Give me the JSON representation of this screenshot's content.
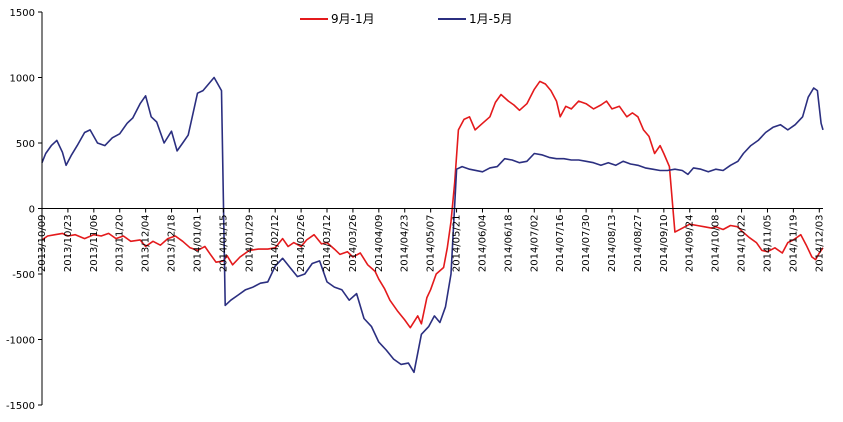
{
  "chart_data": {
    "type": "line",
    "ylim": [
      -1500,
      1500
    ],
    "y_ticks": [
      1500,
      1000,
      500,
      0,
      -500,
      -1000,
      -1500
    ],
    "grid": false,
    "legend_position": "top-center",
    "x_tick_labels": [
      "2013/10/09",
      "2013/10/23",
      "2013/11/06",
      "2013/11/20",
      "2013/12/04",
      "2013/12/18",
      "2014/01/01",
      "2014/01/15",
      "2014/01/29",
      "2014/02/12",
      "2014/02/26",
      "2014/03/12",
      "2014/03/26",
      "2014/04/09",
      "2014/04/23",
      "2014/05/07",
      "2014/05/21",
      "2014/06/04",
      "2014/06/18",
      "2014/07/02",
      "2014/07/16",
      "2014/07/30",
      "2014/08/13",
      "2014/08/27",
      "2014/09/10",
      "2014/09/24",
      "2014/10/08",
      "2014/10/22",
      "2014/11/05",
      "2014/11/19",
      "2014/12/03"
    ],
    "x_range": [
      "2013/10/09",
      "2014/12/05"
    ],
    "series": [
      {
        "name": "9月-1月",
        "color": "#e41a1c",
        "points": [
          [
            "2013/10/09",
            -240
          ],
          [
            "2013/10/12",
            -210
          ],
          [
            "2013/10/16",
            -200
          ],
          [
            "2013/10/20",
            -190
          ],
          [
            "2013/10/23",
            -210
          ],
          [
            "2013/10/27",
            -200
          ],
          [
            "2013/11/01",
            -230
          ],
          [
            "2013/11/06",
            -200
          ],
          [
            "2013/11/10",
            -210
          ],
          [
            "2013/11/14",
            -190
          ],
          [
            "2013/11/18",
            -230
          ],
          [
            "2013/11/22",
            -210
          ],
          [
            "2013/11/26",
            -250
          ],
          [
            "2013/12/01",
            -240
          ],
          [
            "2013/12/04",
            -290
          ],
          [
            "2013/12/08",
            -250
          ],
          [
            "2013/12/12",
            -280
          ],
          [
            "2013/12/16",
            -230
          ],
          [
            "2013/12/20",
            -210
          ],
          [
            "2013/12/24",
            -250
          ],
          [
            "2013/12/28",
            -300
          ],
          [
            "2014/01/01",
            -320
          ],
          [
            "2014/01/05",
            -290
          ],
          [
            "2014/01/08",
            -350
          ],
          [
            "2014/01/11",
            -410
          ],
          [
            "2014/01/15",
            -400
          ],
          [
            "2014/01/17",
            -360
          ],
          [
            "2014/01/20",
            -430
          ],
          [
            "2014/01/24",
            -370
          ],
          [
            "2014/01/29",
            -320
          ],
          [
            "2014/02/03",
            -310
          ],
          [
            "2014/02/08",
            -310
          ],
          [
            "2014/02/12",
            -300
          ],
          [
            "2014/02/16",
            -230
          ],
          [
            "2014/02/19",
            -290
          ],
          [
            "2014/02/22",
            -260
          ],
          [
            "2014/02/26",
            -290
          ],
          [
            "2014/03/01",
            -240
          ],
          [
            "2014/03/05",
            -200
          ],
          [
            "2014/03/09",
            -270
          ],
          [
            "2014/03/12",
            -260
          ],
          [
            "2014/03/16",
            -310
          ],
          [
            "2014/03/19",
            -350
          ],
          [
            "2014/03/23",
            -330
          ],
          [
            "2014/03/26",
            -370
          ],
          [
            "2014/03/30",
            -340
          ],
          [
            "2014/04/03",
            -430
          ],
          [
            "2014/04/07",
            -480
          ],
          [
            "2014/04/09",
            -540
          ],
          [
            "2014/04/12",
            -610
          ],
          [
            "2014/04/15",
            -700
          ],
          [
            "2014/04/19",
            -780
          ],
          [
            "2014/04/23",
            -850
          ],
          [
            "2014/04/26",
            -910
          ],
          [
            "2014/04/30",
            -820
          ],
          [
            "2014/05/02",
            -880
          ],
          [
            "2014/05/05",
            -680
          ],
          [
            "2014/05/07",
            -620
          ],
          [
            "2014/05/10",
            -500
          ],
          [
            "2014/05/14",
            -450
          ],
          [
            "2014/05/16",
            -300
          ],
          [
            "2014/05/18",
            -100
          ],
          [
            "2014/05/20",
            200
          ],
          [
            "2014/05/22",
            600
          ],
          [
            "2014/05/25",
            680
          ],
          [
            "2014/05/28",
            700
          ],
          [
            "2014/05/31",
            600
          ],
          [
            "2014/06/04",
            650
          ],
          [
            "2014/06/08",
            700
          ],
          [
            "2014/06/11",
            810
          ],
          [
            "2014/06/14",
            870
          ],
          [
            "2014/06/18",
            820
          ],
          [
            "2014/06/21",
            790
          ],
          [
            "2014/06/24",
            750
          ],
          [
            "2014/06/28",
            800
          ],
          [
            "2014/07/02",
            910
          ],
          [
            "2014/07/05",
            970
          ],
          [
            "2014/07/08",
            950
          ],
          [
            "2014/07/11",
            900
          ],
          [
            "2014/07/14",
            820
          ],
          [
            "2014/07/16",
            700
          ],
          [
            "2014/07/19",
            780
          ],
          [
            "2014/07/22",
            760
          ],
          [
            "2014/07/26",
            820
          ],
          [
            "2014/07/30",
            800
          ],
          [
            "2014/08/03",
            760
          ],
          [
            "2014/08/07",
            790
          ],
          [
            "2014/08/10",
            820
          ],
          [
            "2014/08/13",
            760
          ],
          [
            "2014/08/17",
            780
          ],
          [
            "2014/08/21",
            700
          ],
          [
            "2014/08/24",
            730
          ],
          [
            "2014/08/27",
            700
          ],
          [
            "2014/08/30",
            600
          ],
          [
            "2014/09/02",
            550
          ],
          [
            "2014/09/05",
            420
          ],
          [
            "2014/09/08",
            480
          ],
          [
            "2014/09/10",
            420
          ],
          [
            "2014/09/13",
            320
          ],
          [
            "2014/09/16",
            -180
          ],
          [
            "2014/09/20",
            -150
          ],
          [
            "2014/09/24",
            -120
          ],
          [
            "2014/09/28",
            -130
          ],
          [
            "2014/10/02",
            -140
          ],
          [
            "2014/10/06",
            -150
          ],
          [
            "2014/10/08",
            -140
          ],
          [
            "2014/10/12",
            -160
          ],
          [
            "2014/10/16",
            -130
          ],
          [
            "2014/10/20",
            -140
          ],
          [
            "2014/10/22",
            -170
          ],
          [
            "2014/10/26",
            -220
          ],
          [
            "2014/10/30",
            -260
          ],
          [
            "2014/11/02",
            -320
          ],
          [
            "2014/11/05",
            -330
          ],
          [
            "2014/11/09",
            -300
          ],
          [
            "2014/11/13",
            -340
          ],
          [
            "2014/11/16",
            -260
          ],
          [
            "2014/11/19",
            -240
          ],
          [
            "2014/11/23",
            -200
          ],
          [
            "2014/11/26",
            -280
          ],
          [
            "2014/11/29",
            -370
          ],
          [
            "2014/12/01",
            -390
          ],
          [
            "2014/12/03",
            -340
          ],
          [
            "2014/12/05",
            -300
          ]
        ]
      },
      {
        "name": "1月-5月",
        "color": "#2b2f80",
        "points": [
          [
            "2013/10/09",
            350
          ],
          [
            "2013/10/11",
            420
          ],
          [
            "2013/10/14",
            480
          ],
          [
            "2013/10/17",
            520
          ],
          [
            "2013/10/20",
            430
          ],
          [
            "2013/10/22",
            330
          ],
          [
            "2013/10/25",
            410
          ],
          [
            "2013/10/28",
            480
          ],
          [
            "2013/11/01",
            580
          ],
          [
            "2013/11/04",
            600
          ],
          [
            "2013/11/08",
            500
          ],
          [
            "2013/11/12",
            480
          ],
          [
            "2013/11/16",
            540
          ],
          [
            "2013/11/20",
            570
          ],
          [
            "2013/11/24",
            650
          ],
          [
            "2013/11/27",
            690
          ],
          [
            "2013/12/01",
            800
          ],
          [
            "2013/12/04",
            860
          ],
          [
            "2013/12/07",
            700
          ],
          [
            "2013/12/10",
            660
          ],
          [
            "2013/12/14",
            500
          ],
          [
            "2013/12/18",
            590
          ],
          [
            "2013/12/21",
            440
          ],
          [
            "2013/12/24",
            500
          ],
          [
            "2013/12/27",
            560
          ],
          [
            "2014/01/01",
            880
          ],
          [
            "2014/01/04",
            900
          ],
          [
            "2014/01/07",
            950
          ],
          [
            "2014/01/10",
            1000
          ],
          [
            "2014/01/12",
            950
          ],
          [
            "2014/01/14",
            900
          ],
          [
            "2014/01/15",
            60
          ],
          [
            "2014/01/16",
            -740
          ],
          [
            "2014/01/19",
            -700
          ],
          [
            "2014/01/23",
            -660
          ],
          [
            "2014/01/27",
            -620
          ],
          [
            "2014/01/31",
            -600
          ],
          [
            "2014/02/04",
            -570
          ],
          [
            "2014/02/08",
            -560
          ],
          [
            "2014/02/12",
            -440
          ],
          [
            "2014/02/16",
            -380
          ],
          [
            "2014/02/20",
            -450
          ],
          [
            "2014/02/24",
            -520
          ],
          [
            "2014/02/28",
            -500
          ],
          [
            "2014/03/04",
            -420
          ],
          [
            "2014/03/08",
            -400
          ],
          [
            "2014/03/12",
            -560
          ],
          [
            "2014/03/16",
            -600
          ],
          [
            "2014/03/20",
            -620
          ],
          [
            "2014/03/24",
            -700
          ],
          [
            "2014/03/28",
            -650
          ],
          [
            "2014/04/01",
            -840
          ],
          [
            "2014/04/05",
            -900
          ],
          [
            "2014/04/09",
            -1020
          ],
          [
            "2014/04/13",
            -1080
          ],
          [
            "2014/04/17",
            -1150
          ],
          [
            "2014/04/21",
            -1190
          ],
          [
            "2014/04/25",
            -1180
          ],
          [
            "2014/04/28",
            -1250
          ],
          [
            "2014/05/02",
            -960
          ],
          [
            "2014/05/06",
            -900
          ],
          [
            "2014/05/09",
            -820
          ],
          [
            "2014/05/12",
            -870
          ],
          [
            "2014/05/15",
            -750
          ],
          [
            "2014/05/18",
            -500
          ],
          [
            "2014/05/21",
            300
          ],
          [
            "2014/05/24",
            320
          ],
          [
            "2014/05/28",
            300
          ],
          [
            "2014/06/04",
            280
          ],
          [
            "2014/06/08",
            310
          ],
          [
            "2014/06/12",
            320
          ],
          [
            "2014/06/16",
            380
          ],
          [
            "2014/06/20",
            370
          ],
          [
            "2014/06/24",
            350
          ],
          [
            "2014/06/28",
            360
          ],
          [
            "2014/07/02",
            420
          ],
          [
            "2014/07/06",
            410
          ],
          [
            "2014/07/10",
            390
          ],
          [
            "2014/07/14",
            380
          ],
          [
            "2014/07/18",
            380
          ],
          [
            "2014/07/22",
            370
          ],
          [
            "2014/07/26",
            370
          ],
          [
            "2014/07/30",
            360
          ],
          [
            "2014/08/03",
            350
          ],
          [
            "2014/08/07",
            330
          ],
          [
            "2014/08/11",
            350
          ],
          [
            "2014/08/15",
            330
          ],
          [
            "2014/08/19",
            360
          ],
          [
            "2014/08/23",
            340
          ],
          [
            "2014/08/27",
            330
          ],
          [
            "2014/08/31",
            310
          ],
          [
            "2014/09/04",
            300
          ],
          [
            "2014/09/08",
            290
          ],
          [
            "2014/09/12",
            290
          ],
          [
            "2014/09/16",
            300
          ],
          [
            "2014/09/20",
            290
          ],
          [
            "2014/09/23",
            260
          ],
          [
            "2014/09/26",
            310
          ],
          [
            "2014/09/30",
            300
          ],
          [
            "2014/10/04",
            280
          ],
          [
            "2014/10/08",
            300
          ],
          [
            "2014/10/12",
            290
          ],
          [
            "2014/10/16",
            330
          ],
          [
            "2014/10/20",
            360
          ],
          [
            "2014/10/23",
            420
          ],
          [
            "2014/10/27",
            480
          ],
          [
            "2014/10/31",
            520
          ],
          [
            "2014/11/04",
            580
          ],
          [
            "2014/11/08",
            620
          ],
          [
            "2014/11/12",
            640
          ],
          [
            "2014/11/16",
            600
          ],
          [
            "2014/11/20",
            640
          ],
          [
            "2014/11/24",
            700
          ],
          [
            "2014/11/27",
            850
          ],
          [
            "2014/11/30",
            920
          ],
          [
            "2014/12/02",
            900
          ],
          [
            "2014/12/04",
            650
          ],
          [
            "2014/12/05",
            600
          ]
        ]
      }
    ]
  }
}
